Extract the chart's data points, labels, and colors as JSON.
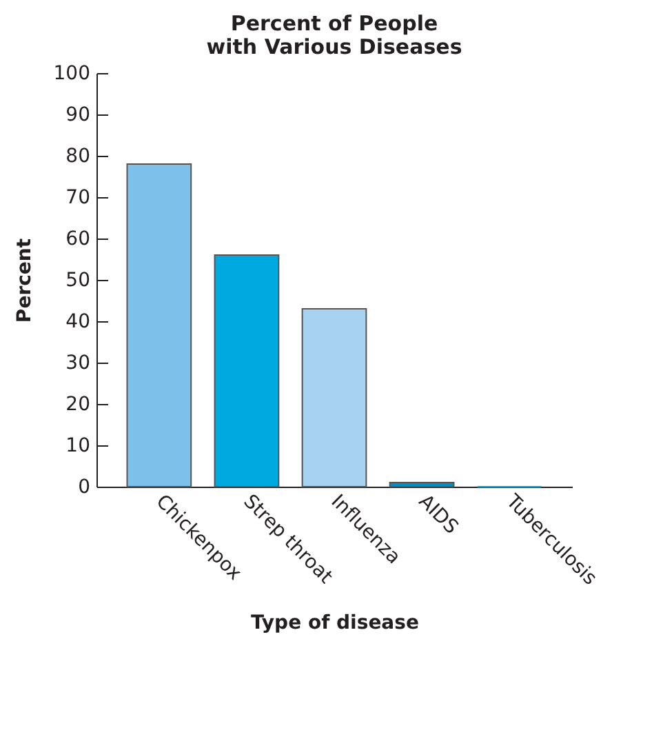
{
  "chart_data": {
    "type": "bar",
    "title": "Percent of People\nwith Various Diseases",
    "xlabel": "Type of disease",
    "ylabel": "Percent",
    "categories": [
      "Chickenpox",
      "Strep throat",
      "Influenza",
      "AIDS",
      "Tuberculosis"
    ],
    "values": [
      78,
      56,
      43,
      1,
      0
    ],
    "colors": [
      "#7dc1ea",
      "#00a9e0",
      "#a7d3f0",
      "#0090c8",
      "#00a9e0"
    ],
    "ylim": [
      0,
      100
    ],
    "yticks": [
      0,
      10,
      20,
      30,
      40,
      50,
      60,
      70,
      80,
      90,
      100
    ]
  }
}
